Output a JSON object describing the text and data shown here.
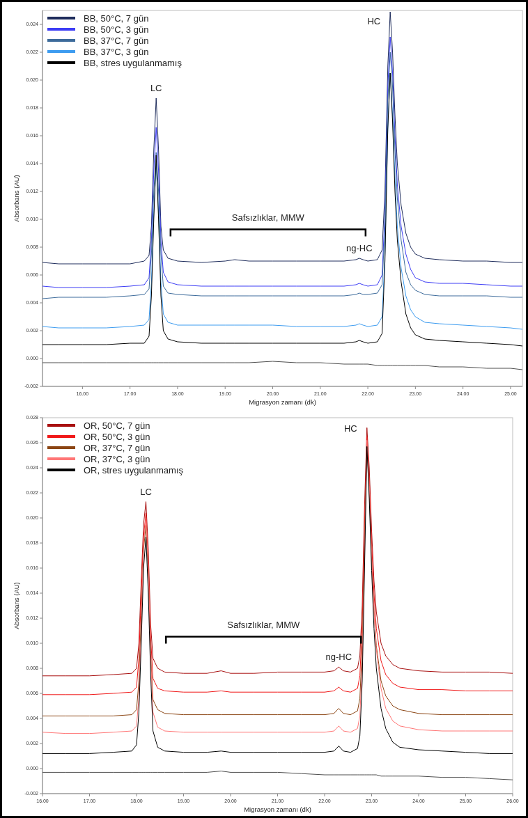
{
  "chart_data": [
    {
      "type": "line",
      "xlabel": "Migrasyon zamanı (dk)",
      "ylabel": "Absorbans (AU)",
      "legend": "top left",
      "grid": false,
      "xlim": [
        15.16,
        25.25
      ],
      "ylim": [
        -0.002,
        0.025
      ],
      "xticks": [
        {
          "value": 16,
          "label": "16.00"
        },
        {
          "value": 17,
          "label": "17.00"
        },
        {
          "value": 18,
          "label": "18.00"
        },
        {
          "value": 19,
          "label": "19.00"
        },
        {
          "value": 20,
          "label": "20.00"
        },
        {
          "value": 21,
          "label": "21.00"
        },
        {
          "value": 22,
          "label": "22.00"
        },
        {
          "value": 23,
          "label": "23.00"
        },
        {
          "value": 24,
          "label": "24.00"
        },
        {
          "value": 25,
          "label": "25.00"
        }
      ],
      "yticks": [
        {
          "value": -0.002,
          "label": "-0.002"
        },
        {
          "value": 0,
          "label": "0.000"
        },
        {
          "value": 0.002,
          "label": "0.002"
        },
        {
          "value": 0.004,
          "label": "0.004"
        },
        {
          "value": 0.006,
          "label": "0.006"
        },
        {
          "value": 0.008,
          "label": "0.008"
        },
        {
          "value": 0.01,
          "label": "0.010"
        },
        {
          "value": 0.012,
          "label": "0.012"
        },
        {
          "value": 0.014,
          "label": "0.014"
        },
        {
          "value": 0.016,
          "label": "0.016"
        },
        {
          "value": 0.018,
          "label": "0.018"
        },
        {
          "value": 0.02,
          "label": "0.020"
        },
        {
          "value": 0.022,
          "label": "0.022"
        },
        {
          "value": 0.024,
          "label": "0.024"
        }
      ],
      "x": [
        15.16,
        15.5,
        16.0,
        16.5,
        17.0,
        17.3,
        17.4,
        17.45,
        17.5,
        17.55,
        17.6,
        17.65,
        17.7,
        17.8,
        18.0,
        18.5,
        19.0,
        19.2,
        19.5,
        20.0,
        20.5,
        21.0,
        21.5,
        21.75,
        21.82,
        21.9,
        22.0,
        22.2,
        22.3,
        22.36,
        22.42,
        22.47,
        22.52,
        22.57,
        22.62,
        22.7,
        22.8,
        22.9,
        23.0,
        23.2,
        23.5,
        24.0,
        24.5,
        25.0,
        25.25
      ],
      "series": [
        {
          "name": "BB, 50°C, 7 gün",
          "color": "#1f2d5c",
          "values": [
            0.0069,
            0.0068,
            0.0068,
            0.0068,
            0.0068,
            0.007,
            0.0074,
            0.0095,
            0.015,
            0.0187,
            0.015,
            0.0095,
            0.0078,
            0.0072,
            0.007,
            0.0069,
            0.007,
            0.0071,
            0.007,
            0.007,
            0.007,
            0.007,
            0.007,
            0.0071,
            0.0072,
            0.0071,
            0.007,
            0.0071,
            0.0078,
            0.012,
            0.021,
            0.0249,
            0.022,
            0.0175,
            0.014,
            0.011,
            0.009,
            0.008,
            0.0075,
            0.0072,
            0.0071,
            0.007,
            0.007,
            0.0069,
            0.0069
          ]
        },
        {
          "name": "BB, 50°C, 3 gün",
          "color": "#3c3cf5",
          "values": [
            0.0052,
            0.0051,
            0.0051,
            0.0051,
            0.0052,
            0.0053,
            0.0058,
            0.0085,
            0.0135,
            0.0166,
            0.0135,
            0.0085,
            0.0062,
            0.0055,
            0.0053,
            0.0052,
            0.0052,
            0.0052,
            0.0052,
            0.0052,
            0.0052,
            0.0052,
            0.0052,
            0.0053,
            0.0054,
            0.0053,
            0.0052,
            0.0053,
            0.006,
            0.0105,
            0.0195,
            0.0231,
            0.0205,
            0.016,
            0.0125,
            0.0095,
            0.0075,
            0.0064,
            0.0058,
            0.0055,
            0.0054,
            0.0054,
            0.0053,
            0.0052,
            0.0052
          ]
        },
        {
          "name": "BB, 37°C, 7 gün",
          "color": "#3d6b9b",
          "values": [
            0.0043,
            0.0044,
            0.0044,
            0.0044,
            0.0045,
            0.0046,
            0.005,
            0.0075,
            0.012,
            0.0148,
            0.012,
            0.0075,
            0.0052,
            0.0047,
            0.0046,
            0.0045,
            0.0045,
            0.0045,
            0.0045,
            0.0045,
            0.0045,
            0.0045,
            0.0045,
            0.0046,
            0.0047,
            0.0046,
            0.0046,
            0.0047,
            0.0053,
            0.0095,
            0.0185,
            0.022,
            0.0195,
            0.015,
            0.0115,
            0.0085,
            0.0062,
            0.0053,
            0.0049,
            0.0046,
            0.0045,
            0.0045,
            0.0045,
            0.0044,
            0.0044
          ]
        },
        {
          "name": "BB, 37°C, 3 gün",
          "color": "#3d9cf0",
          "values": [
            0.0023,
            0.0022,
            0.0022,
            0.0022,
            0.0023,
            0.0024,
            0.0028,
            0.0055,
            0.0105,
            0.014,
            0.0105,
            0.0055,
            0.0032,
            0.0026,
            0.0024,
            0.0024,
            0.0024,
            0.0024,
            0.0024,
            0.0024,
            0.0023,
            0.0023,
            0.0023,
            0.0024,
            0.0025,
            0.0024,
            0.0023,
            0.0024,
            0.003,
            0.0075,
            0.0165,
            0.0205,
            0.0175,
            0.013,
            0.0095,
            0.0065,
            0.0045,
            0.0035,
            0.003,
            0.0026,
            0.0025,
            0.0024,
            0.0023,
            0.0022,
            0.0021
          ]
        },
        {
          "name": "BB, stres uygulanmamış",
          "color": "#000000",
          "values": [
            0.001,
            0.001,
            0.001,
            0.001,
            0.0011,
            0.0011,
            0.0016,
            0.0045,
            0.01,
            0.0146,
            0.01,
            0.0045,
            0.002,
            0.0014,
            0.0012,
            0.0011,
            0.0011,
            0.0011,
            0.0011,
            0.0011,
            0.0011,
            0.0011,
            0.0011,
            0.0012,
            0.0013,
            0.0012,
            0.0011,
            0.0012,
            0.0018,
            0.007,
            0.0165,
            0.0205,
            0.017,
            0.012,
            0.0085,
            0.0055,
            0.0032,
            0.0022,
            0.0017,
            0.0014,
            0.0013,
            0.0012,
            0.0011,
            0.001,
            0.0009
          ]
        },
        {
          "color": "#4d4d4d",
          "values": [
            -0.0003,
            -0.0003,
            -0.0003,
            -0.0003,
            -0.0003,
            -0.0003,
            -0.0003,
            -0.0003,
            -0.0003,
            -0.0003,
            -0.0003,
            -0.0003,
            -0.0003,
            -0.0003,
            -0.0003,
            -0.0003,
            -0.0003,
            -0.0003,
            -0.0003,
            -0.0002,
            -0.0003,
            -0.0003,
            -0.0004,
            -0.0004,
            -0.0004,
            -0.0004,
            -0.0004,
            -0.0005,
            -0.0005,
            -0.0005,
            -0.0005,
            -0.0005,
            -0.0005,
            -0.0005,
            -0.0005,
            -0.0005,
            -0.0005,
            -0.0005,
            -0.0005,
            -0.0005,
            -0.0006,
            -0.0006,
            -0.0007,
            -0.0007,
            -0.0008
          ]
        }
      ],
      "annotations": [
        {
          "text": "LC",
          "x": 17.55,
          "y": 0.0187
        },
        {
          "text": "HC",
          "x": 22.47,
          "y": 0.0249
        },
        {
          "text": "ng-HC",
          "x": 21.82,
          "y": 0.0072
        },
        "Safsızlıklar, MMW"
      ]
    },
    {
      "type": "line",
      "xlabel": "Migrasyon zamanı (dk)",
      "ylabel": "Absorbans (AU)",
      "legend": "top left",
      "grid": false,
      "xlim": [
        16,
        26
      ],
      "ylim": [
        -0.002,
        0.028
      ],
      "xticks": [
        {
          "value": 16,
          "label": "16.00"
        },
        {
          "value": 17,
          "label": "17.00"
        },
        {
          "value": 18,
          "label": "18.00"
        },
        {
          "value": 19,
          "label": "19.00"
        },
        {
          "value": 20,
          "label": "20.00"
        },
        {
          "value": 21,
          "label": "21.00"
        },
        {
          "value": 22,
          "label": "22.00"
        },
        {
          "value": 23,
          "label": "23.00"
        },
        {
          "value": 24,
          "label": "24.00"
        },
        {
          "value": 25,
          "label": "25.00"
        },
        {
          "value": 26,
          "label": "26.00"
        }
      ],
      "yticks": [
        {
          "value": -0.002,
          "label": "-0.002"
        },
        {
          "value": 0,
          "label": "0.000"
        },
        {
          "value": 0.002,
          "label": "0.002"
        },
        {
          "value": 0.004,
          "label": "0.004"
        },
        {
          "value": 0.006,
          "label": "0.006"
        },
        {
          "value": 0.008,
          "label": "0.008"
        },
        {
          "value": 0.01,
          "label": "0.010"
        },
        {
          "value": 0.012,
          "label": "0.012"
        },
        {
          "value": 0.014,
          "label": "0.014"
        },
        {
          "value": 0.016,
          "label": "0.016"
        },
        {
          "value": 0.018,
          "label": "0.018"
        },
        {
          "value": 0.02,
          "label": "0.020"
        },
        {
          "value": 0.022,
          "label": "0.022"
        },
        {
          "value": 0.024,
          "label": "0.024"
        },
        {
          "value": 0.026,
          "label": "0.026"
        },
        {
          "value": 0.028,
          "label": "0.028"
        }
      ],
      "x": [
        16.0,
        16.5,
        17.0,
        17.5,
        17.9,
        18.0,
        18.05,
        18.1,
        18.15,
        18.2,
        18.25,
        18.3,
        18.35,
        18.45,
        18.6,
        19.0,
        19.5,
        19.8,
        20.0,
        20.5,
        21.0,
        21.5,
        22.0,
        22.2,
        22.3,
        22.4,
        22.55,
        22.7,
        22.75,
        22.8,
        22.85,
        22.9,
        22.95,
        23.0,
        23.05,
        23.1,
        23.2,
        23.3,
        23.45,
        23.6,
        24.0,
        24.5,
        25.0,
        25.5,
        26.0
      ],
      "series": [
        {
          "name": "OR, 50°C, 7 gün",
          "color": "#a80f0f",
          "values": [
            0.0074,
            0.0074,
            0.0074,
            0.0075,
            0.0076,
            0.008,
            0.01,
            0.015,
            0.0195,
            0.0213,
            0.0175,
            0.0115,
            0.0088,
            0.008,
            0.0077,
            0.0076,
            0.0076,
            0.0078,
            0.0076,
            0.0076,
            0.0077,
            0.0077,
            0.0077,
            0.0078,
            0.0081,
            0.0078,
            0.0077,
            0.008,
            0.009,
            0.013,
            0.021,
            0.0272,
            0.024,
            0.019,
            0.015,
            0.0125,
            0.01,
            0.009,
            0.0083,
            0.008,
            0.0078,
            0.0077,
            0.0077,
            0.0077,
            0.0076
          ]
        },
        {
          "name": "OR, 50°C, 3 gün",
          "color": "#f01818",
          "values": [
            0.0059,
            0.0059,
            0.0059,
            0.006,
            0.0061,
            0.0065,
            0.0088,
            0.014,
            0.0185,
            0.0204,
            0.0165,
            0.0105,
            0.0072,
            0.0064,
            0.0062,
            0.0061,
            0.0061,
            0.0062,
            0.0061,
            0.0061,
            0.0061,
            0.0061,
            0.0061,
            0.0062,
            0.0065,
            0.0062,
            0.0061,
            0.0064,
            0.0074,
            0.0115,
            0.0195,
            0.0265,
            0.0232,
            0.018,
            0.014,
            0.0112,
            0.0086,
            0.0075,
            0.0068,
            0.0065,
            0.0063,
            0.0063,
            0.0062,
            0.0062,
            0.0062
          ]
        },
        {
          "name": "OR, 37°C, 7 gün",
          "color": "#8b4513",
          "values": [
            0.0042,
            0.0042,
            0.0042,
            0.0042,
            0.0043,
            0.0047,
            0.007,
            0.0122,
            0.0175,
            0.0194,
            0.0155,
            0.0092,
            0.0055,
            0.0047,
            0.0044,
            0.0043,
            0.0043,
            0.0043,
            0.0043,
            0.0043,
            0.0043,
            0.0043,
            0.0043,
            0.0044,
            0.0048,
            0.0044,
            0.0043,
            0.0046,
            0.0056,
            0.0098,
            0.018,
            0.0258,
            0.0222,
            0.0168,
            0.0126,
            0.0098,
            0.007,
            0.0058,
            0.005,
            0.0047,
            0.0044,
            0.0043,
            0.0043,
            0.0043,
            0.0043
          ]
        },
        {
          "name": "OR, 37°C, 3 gün",
          "color": "#ff7676",
          "values": [
            0.0029,
            0.0028,
            0.0028,
            0.0029,
            0.003,
            0.0034,
            0.0057,
            0.011,
            0.018,
            0.02,
            0.016,
            0.009,
            0.0045,
            0.0033,
            0.003,
            0.0029,
            0.0029,
            0.0029,
            0.0029,
            0.0029,
            0.0029,
            0.0029,
            0.0029,
            0.003,
            0.0034,
            0.003,
            0.0029,
            0.0032,
            0.0042,
            0.0085,
            0.017,
            0.0262,
            0.0226,
            0.017,
            0.0126,
            0.0095,
            0.0064,
            0.0048,
            0.0038,
            0.0034,
            0.0031,
            0.003,
            0.003,
            0.003,
            0.003
          ]
        },
        {
          "name": "OR, stres uygulanmamış",
          "color": "#000000",
          "values": [
            0.0012,
            0.0012,
            0.0012,
            0.0013,
            0.0014,
            0.0019,
            0.0045,
            0.01,
            0.016,
            0.0185,
            0.014,
            0.0075,
            0.003,
            0.0017,
            0.0014,
            0.0013,
            0.0013,
            0.0014,
            0.0013,
            0.0013,
            0.0013,
            0.0013,
            0.0013,
            0.0014,
            0.0018,
            0.0014,
            0.0013,
            0.0016,
            0.0026,
            0.007,
            0.016,
            0.0257,
            0.0215,
            0.0158,
            0.0112,
            0.008,
            0.0048,
            0.0032,
            0.0021,
            0.0017,
            0.0015,
            0.0014,
            0.0013,
            0.0012,
            0.0012
          ]
        },
        {
          "color": "#4d4d4d",
          "values": [
            -0.0003,
            -0.0003,
            -0.0003,
            -0.0003,
            -0.0003,
            -0.0003,
            -0.0003,
            -0.0003,
            -0.0003,
            -0.0003,
            -0.0003,
            -0.0003,
            -0.0003,
            -0.0003,
            -0.0003,
            -0.0003,
            -0.0003,
            -0.0002,
            -0.0003,
            -0.0003,
            -0.0003,
            -0.0004,
            -0.0005,
            -0.0005,
            -0.0005,
            -0.0005,
            -0.0005,
            -0.0005,
            -0.0005,
            -0.0005,
            -0.0005,
            -0.0005,
            -0.0005,
            -0.0005,
            -0.0005,
            -0.0005,
            -0.0006,
            -0.0006,
            -0.0006,
            -0.0006,
            -0.0006,
            -0.0007,
            -0.0007,
            -0.0008,
            -0.0009
          ]
        }
      ],
      "annotations": [
        {
          "text": "LC",
          "x": 18.2,
          "y": 0.0213
        },
        {
          "text": "HC",
          "x": 22.9,
          "y": 0.0272
        },
        {
          "text": "ng-HC",
          "x": 22.3,
          "y": 0.0081
        },
        "Safsızlıklar, MMW"
      ]
    }
  ]
}
